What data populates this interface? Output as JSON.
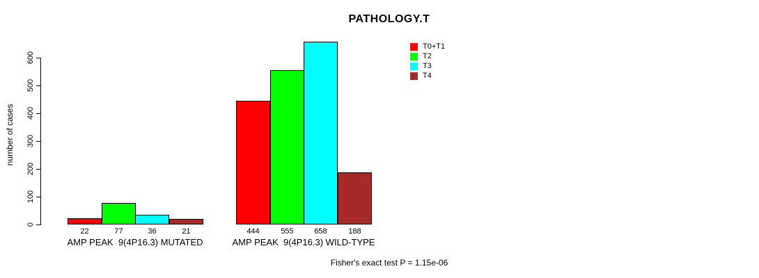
{
  "page": {
    "background": "#ffffff"
  },
  "chart_data": {
    "type": "bar",
    "title": "PATHOLOGY.T",
    "xlabel": "",
    "ylabel": "number of cases",
    "ylim": [
      0,
      600
    ],
    "yticks": [
      0,
      100,
      200,
      300,
      400,
      500,
      600
    ],
    "grid": false,
    "show_value_labels": true,
    "legend_position": "top-right",
    "bar_border_color": "#000000",
    "categories": [
      "AMP PEAK  9(4P16.3) MUTATED",
      "AMP PEAK  9(4P16.3) WILD-TYPE"
    ],
    "series": [
      {
        "name": "T0+T1",
        "color": "#FF0000",
        "values": [
          22,
          444
        ]
      },
      {
        "name": "T2",
        "color": "#00FF00",
        "values": [
          77,
          555
        ]
      },
      {
        "name": "T3",
        "color": "#00FFFF",
        "values": [
          36,
          658
        ]
      },
      {
        "name": "T4",
        "color": "#A52A2A",
        "values": [
          21,
          188
        ]
      }
    ],
    "annotation": "Fisher's exact test P = 1.15e-06"
  }
}
